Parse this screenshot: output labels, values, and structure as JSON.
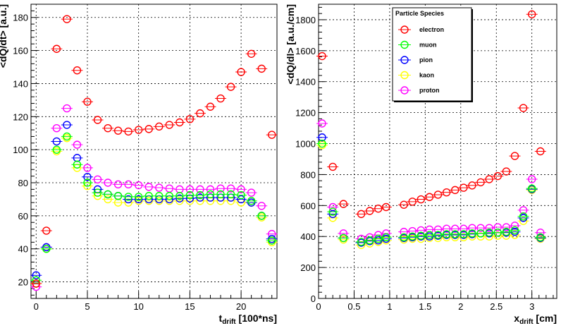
{
  "chart_data": [
    {
      "type": "scatter",
      "xlabel": "t",
      "xlabel_sub": "drift",
      "xlabel_suffix": " [100*ns]",
      "ylabel": "<dQ/dt> [a.u.]",
      "xlim": [
        -0.5,
        23.5
      ],
      "ylim": [
        10,
        188
      ],
      "x_ticks": [
        0,
        5,
        10,
        15,
        20
      ],
      "y_ticks": [
        20,
        40,
        60,
        80,
        100,
        120,
        140,
        160,
        180
      ],
      "grid": true,
      "x": [
        0,
        1,
        2,
        3,
        4,
        5,
        6,
        7,
        8,
        9,
        10,
        11,
        12,
        13,
        14,
        15,
        16,
        17,
        18,
        19,
        20,
        21,
        22,
        23
      ],
      "series": [
        {
          "name": "electron",
          "color": "#ff0000",
          "values": [
            19,
            51,
            161,
            179,
            148,
            129,
            118,
            113,
            111.5,
            111,
            112,
            112.5,
            114,
            115,
            116.5,
            118.5,
            122,
            126,
            131,
            138,
            147,
            158,
            149,
            109
          ]
        },
        {
          "name": "muon",
          "color": "#00ff00",
          "values": [
            21,
            40,
            100,
            108,
            91,
            80,
            74,
            73,
            72,
            71.5,
            71.5,
            72,
            72,
            72,
            72,
            72.5,
            72.5,
            73,
            73,
            73,
            72.5,
            69,
            60,
            45
          ]
        },
        {
          "name": "pion",
          "color": "#0000ff",
          "values": [
            24,
            41,
            105,
            115,
            95,
            83.5,
            76,
            73,
            72,
            70,
            70,
            70,
            70,
            70,
            70.5,
            70.5,
            71,
            71,
            71,
            71,
            70,
            68,
            60,
            46
          ]
        },
        {
          "name": "kaon",
          "color": "#ffff00",
          "values": [
            19,
            40,
            99,
            107,
            89,
            78,
            72,
            70,
            68,
            68,
            69,
            69,
            69,
            69,
            69,
            69,
            69,
            69,
            69,
            69,
            68,
            68,
            59,
            44
          ]
        },
        {
          "name": "proton",
          "color": "#ff00ff",
          "values": [
            17,
            41,
            113,
            125,
            103,
            89,
            82,
            80,
            79,
            79,
            78.5,
            77.5,
            77,
            76.5,
            76,
            76,
            76,
            76,
            76.5,
            76.5,
            76,
            74,
            66,
            49
          ]
        }
      ]
    },
    {
      "type": "scatter",
      "xlabel": "x",
      "xlabel_sub": "drift",
      "xlabel_suffix": " [cm]",
      "ylabel": "<dQ/dl> [a.u./cm]",
      "xlim": [
        0,
        3.35
      ],
      "ylim": [
        0,
        1900
      ],
      "x_ticks": [
        0,
        0.5,
        1,
        1.5,
        2,
        2.5,
        3
      ],
      "x_tick_labels": [
        "0",
        "0.5",
        "1",
        "1.5",
        "2",
        "2.5",
        "3"
      ],
      "y_ticks": [
        0,
        200,
        400,
        600,
        800,
        1000,
        1200,
        1400,
        1600,
        1800
      ],
      "grid": true,
      "x": [
        0.05,
        0.2,
        0.35,
        0.6,
        0.72,
        0.84,
        0.95,
        1.2,
        1.32,
        1.44,
        1.56,
        1.68,
        1.8,
        1.92,
        2.04,
        2.16,
        2.28,
        2.4,
        2.52,
        2.64,
        2.76,
        2.88,
        3.0,
        3.12
      ],
      "series": [
        {
          "name": "electron",
          "color": "#ff0000",
          "values": [
            1565,
            850,
            610,
            545,
            565,
            580,
            590,
            605,
            625,
            640,
            655,
            670,
            685,
            700,
            715,
            730,
            750,
            770,
            790,
            820,
            920,
            1230,
            1835,
            950
          ]
        },
        {
          "name": "muon",
          "color": "#00ff00",
          "values": [
            1000,
            560,
            390,
            365,
            375,
            385,
            395,
            395,
            400,
            405,
            410,
            410,
            415,
            415,
            415,
            420,
            420,
            425,
            425,
            430,
            440,
            530,
            710,
            395
          ]
        },
        {
          "name": "pion",
          "color": "#0000ff",
          "values": [
            1040,
            545,
            390,
            360,
            370,
            375,
            385,
            390,
            395,
            400,
            400,
            405,
            410,
            410,
            410,
            415,
            420,
            420,
            425,
            425,
            430,
            520,
            705,
            390
          ]
        },
        {
          "name": "kaon",
          "color": "#ffff00",
          "values": [
            990,
            520,
            380,
            345,
            355,
            365,
            375,
            380,
            385,
            385,
            390,
            390,
            395,
            395,
            395,
            400,
            400,
            400,
            405,
            405,
            410,
            500,
            700,
            385
          ]
        },
        {
          "name": "proton",
          "color": "#ff00ff",
          "values": [
            1130,
            590,
            420,
            385,
            395,
            410,
            420,
            430,
            435,
            440,
            445,
            445,
            450,
            450,
            450,
            455,
            455,
            455,
            460,
            460,
            470,
            570,
            770,
            425
          ]
        }
      ],
      "legend": {
        "title": "Particle Species",
        "placement": "top-right",
        "entries": [
          "electron",
          "muon",
          "pion",
          "kaon",
          "proton"
        ]
      }
    }
  ]
}
